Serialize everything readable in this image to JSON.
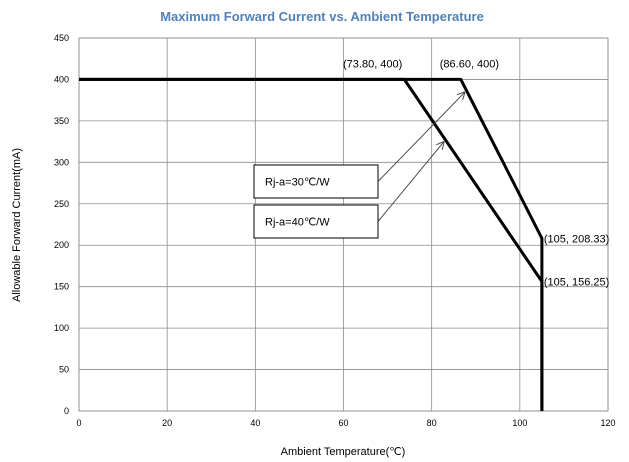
{
  "chart_data": {
    "type": "line",
    "title": "Maximum Forward Current vs. Ambient Temperature",
    "xlabel": "Ambient Temperature(℃)",
    "ylabel": "Allowable Forward Current(mA)",
    "xlim": [
      0,
      120
    ],
    "ylim": [
      0,
      450
    ],
    "xticks": [
      0,
      20,
      40,
      60,
      80,
      100,
      120
    ],
    "yticks": [
      0,
      50,
      100,
      150,
      200,
      250,
      300,
      350,
      400,
      450
    ],
    "grid": true,
    "series": [
      {
        "name": "Rj-a=30℃/W",
        "points": [
          [
            0,
            400
          ],
          [
            86.6,
            400
          ],
          [
            105,
            208.33
          ],
          [
            105,
            0
          ]
        ]
      },
      {
        "name": "Rj-a=40℃/W",
        "points": [
          [
            0,
            400
          ],
          [
            73.8,
            400
          ],
          [
            105,
            156.25
          ],
          [
            105,
            0
          ]
        ]
      }
    ],
    "annotations": [
      {
        "text": "(73.80, 400)",
        "x": 73.8,
        "y": 400
      },
      {
        "text": "(86.60, 400)",
        "x": 86.6,
        "y": 400
      },
      {
        "text": "(105, 208.33)",
        "x": 105,
        "y": 208.33
      },
      {
        "text": "(105, 156.25)",
        "x": 105,
        "y": 156.25
      }
    ],
    "callouts": [
      {
        "text": "Rj-a=30℃/W",
        "series": 0
      },
      {
        "text": "Rj-a=40℃/W",
        "series": 1
      }
    ]
  }
}
